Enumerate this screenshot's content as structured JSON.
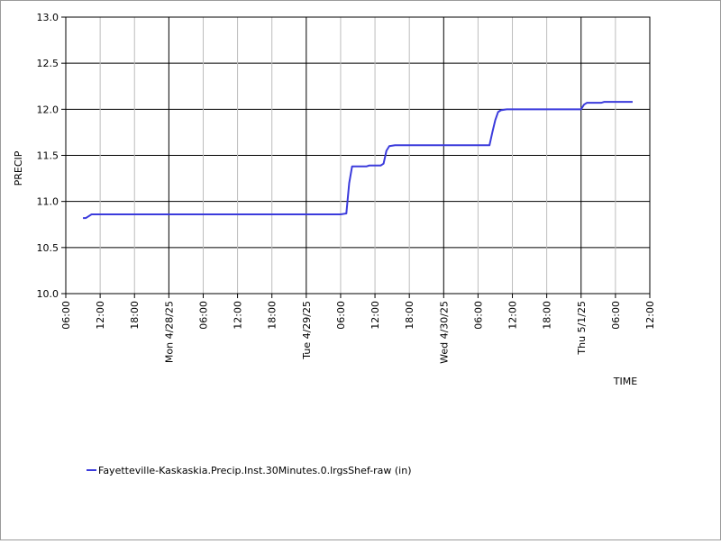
{
  "chart_data": {
    "type": "line",
    "title": "",
    "ylabel": "PRECIP",
    "xlabel": "TIME",
    "ylim": [
      10.0,
      13.0
    ],
    "yticks": [
      10.0,
      10.5,
      11.0,
      11.5,
      12.0,
      12.5,
      13.0
    ],
    "ytick_labels": [
      "10.0",
      "10.5",
      "11.0",
      "11.5",
      "12.0",
      "12.5",
      "13.0"
    ],
    "xlim": [
      "2025-04-27 06:00",
      "2025-05-01 12:00"
    ],
    "xticks": [
      {
        "t": "2025-04-27 06:00",
        "label": "06:00",
        "major": false
      },
      {
        "t": "2025-04-27 12:00",
        "label": "12:00",
        "major": false
      },
      {
        "t": "2025-04-27 18:00",
        "label": "18:00",
        "major": false
      },
      {
        "t": "2025-04-28 00:00",
        "label": "Mon 4/28/25",
        "major": true
      },
      {
        "t": "2025-04-28 06:00",
        "label": "06:00",
        "major": false
      },
      {
        "t": "2025-04-28 12:00",
        "label": "12:00",
        "major": false
      },
      {
        "t": "2025-04-28 18:00",
        "label": "18:00",
        "major": false
      },
      {
        "t": "2025-04-29 00:00",
        "label": "Tue 4/29/25",
        "major": true
      },
      {
        "t": "2025-04-29 06:00",
        "label": "06:00",
        "major": false
      },
      {
        "t": "2025-04-29 12:00",
        "label": "12:00",
        "major": false
      },
      {
        "t": "2025-04-29 18:00",
        "label": "18:00",
        "major": false
      },
      {
        "t": "2025-04-30 00:00",
        "label": "Wed 4/30/25",
        "major": true
      },
      {
        "t": "2025-04-30 06:00",
        "label": "06:00",
        "major": false
      },
      {
        "t": "2025-04-30 12:00",
        "label": "12:00",
        "major": false
      },
      {
        "t": "2025-04-30 18:00",
        "label": "18:00",
        "major": false
      },
      {
        "t": "2025-05-01 00:00",
        "label": "Thu 5/1/25",
        "major": true
      },
      {
        "t": "2025-05-01 06:00",
        "label": "06:00",
        "major": false
      },
      {
        "t": "2025-05-01 12:00",
        "label": "12:00",
        "major": false
      }
    ],
    "grid": true,
    "legend_position": "bottom-left",
    "series": [
      {
        "name": "Fayetteville-Kaskaskia.Precip.Inst.30Minutes.0.lrgsShef-raw (in)",
        "color": "#3b3bdc",
        "points": [
          [
            "2025-04-27 09:00",
            10.82
          ],
          [
            "2025-04-27 09:30",
            10.82
          ],
          [
            "2025-04-27 10:00",
            10.84
          ],
          [
            "2025-04-27 10:30",
            10.86
          ],
          [
            "2025-04-29 06:00",
            10.86
          ],
          [
            "2025-04-29 07:00",
            10.87
          ],
          [
            "2025-04-29 07:30",
            11.2
          ],
          [
            "2025-04-29 08:00",
            11.38
          ],
          [
            "2025-04-29 10:30",
            11.38
          ],
          [
            "2025-04-29 11:00",
            11.39
          ],
          [
            "2025-04-29 13:00",
            11.39
          ],
          [
            "2025-04-29 13:30",
            11.41
          ],
          [
            "2025-04-29 14:00",
            11.55
          ],
          [
            "2025-04-29 14:30",
            11.6
          ],
          [
            "2025-04-29 15:30",
            11.61
          ],
          [
            "2025-04-30 08:00",
            11.61
          ],
          [
            "2025-04-30 08:30",
            11.75
          ],
          [
            "2025-04-30 09:00",
            11.88
          ],
          [
            "2025-04-30 09:30",
            11.97
          ],
          [
            "2025-04-30 10:00",
            11.99
          ],
          [
            "2025-04-30 11:00",
            12.0
          ],
          [
            "2025-05-01 00:00",
            12.0
          ],
          [
            "2025-05-01 00:30",
            12.05
          ],
          [
            "2025-05-01 01:00",
            12.07
          ],
          [
            "2025-05-01 03:30",
            12.07
          ],
          [
            "2025-05-01 04:00",
            12.08
          ],
          [
            "2025-05-01 09:00",
            12.08
          ]
        ]
      }
    ]
  }
}
